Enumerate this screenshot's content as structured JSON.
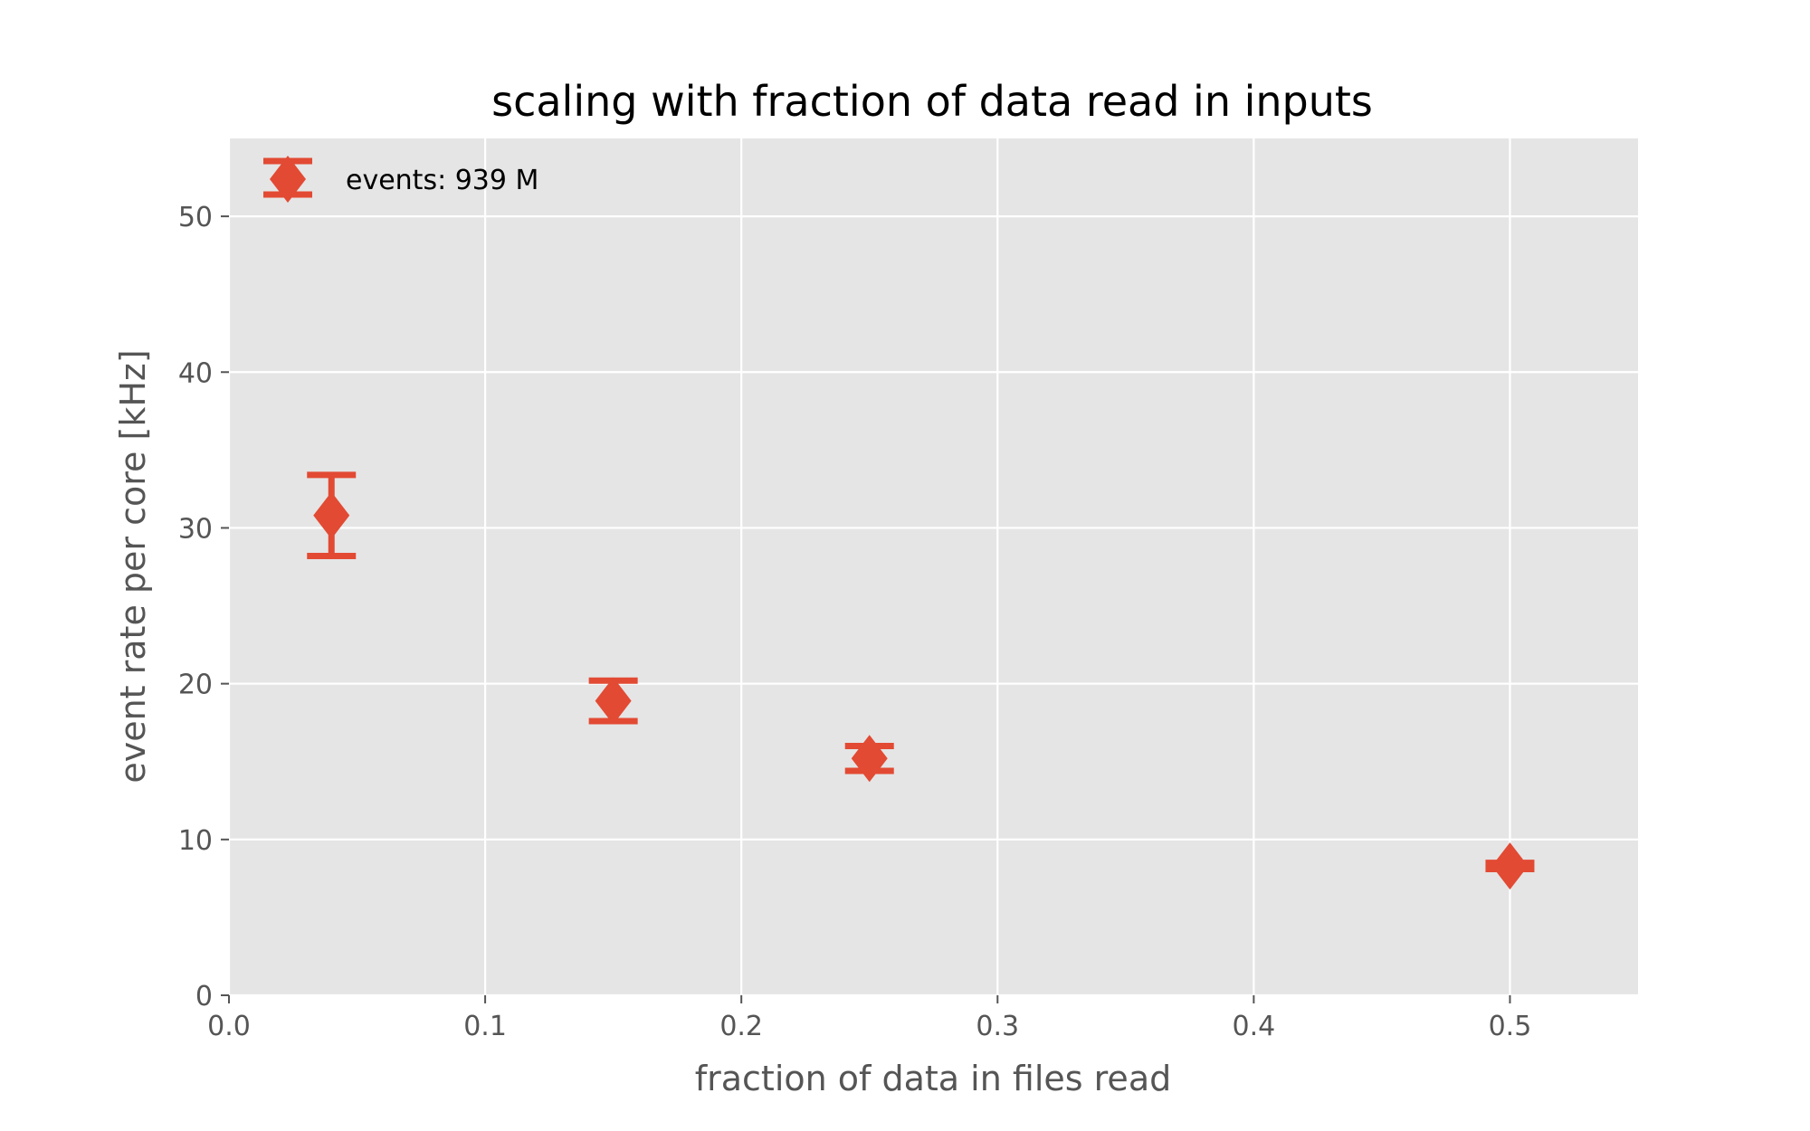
{
  "chart_data": {
    "type": "scatter",
    "title": "scaling with fraction of data read in inputs",
    "xlabel": "fraction of data in files read",
    "ylabel": "event rate per core [kHz]",
    "xlim": [
      0.0,
      0.55
    ],
    "ylim": [
      0,
      55
    ],
    "xticks": [
      0.0,
      0.1,
      0.2,
      0.3,
      0.4,
      0.5
    ],
    "xtick_labels": [
      "0.0",
      "0.1",
      "0.2",
      "0.3",
      "0.4",
      "0.5"
    ],
    "yticks": [
      0,
      10,
      20,
      30,
      40,
      50
    ],
    "ytick_labels": [
      "0",
      "10",
      "20",
      "30",
      "40",
      "50"
    ],
    "grid": true,
    "legend_position": "top-left",
    "marker": "diamond",
    "color": "#e24a33",
    "background": "#e5e5e5",
    "series": [
      {
        "name": "events: 939 M",
        "x": [
          0.04,
          0.15,
          0.25,
          0.5
        ],
        "y": [
          30.8,
          18.9,
          15.2,
          8.3
        ],
        "yerr_low": [
          28.2,
          17.6,
          14.4,
          8.1
        ],
        "yerr_high": [
          33.4,
          20.2,
          16.0,
          8.5
        ]
      }
    ]
  }
}
